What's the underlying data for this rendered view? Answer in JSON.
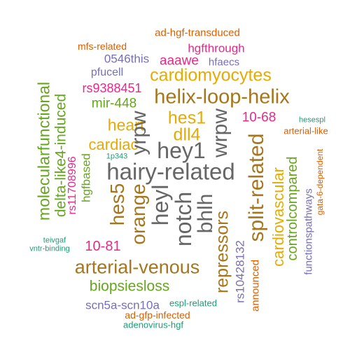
{
  "colors": {
    "green": "#1B9E77",
    "orange": "#D95F02",
    "purple": "#7570B3",
    "magenta": "#E7298A",
    "olive": "#66A61E",
    "gold": "#E6AB02",
    "brown": "#A6761D",
    "gray": "#666666"
  },
  "words": [
    {
      "text": "ad-hgf-transduced",
      "color": "orange"
    },
    {
      "text": "mfs-related",
      "color": "orange"
    },
    {
      "text": "hgfthrough",
      "color": "magenta"
    },
    {
      "text": "0546this",
      "color": "purple"
    },
    {
      "text": "aaawe",
      "color": "magenta"
    },
    {
      "text": "hfaecs",
      "color": "purple"
    },
    {
      "text": "pfucell",
      "color": "purple"
    },
    {
      "text": "cardiomyocytes",
      "color": "gold"
    },
    {
      "text": "rs9388451",
      "color": "magenta"
    },
    {
      "text": "helix-loop-helix",
      "color": "brown"
    },
    {
      "text": "mir-448",
      "color": "olive"
    },
    {
      "text": "hes1",
      "color": "gold"
    },
    {
      "text": "10-68",
      "color": "magenta"
    },
    {
      "text": "hesespl",
      "color": "green"
    },
    {
      "text": "heart",
      "color": "gold"
    },
    {
      "text": "dll4",
      "color": "gold"
    },
    {
      "text": "arterial-like",
      "color": "orange"
    },
    {
      "text": "cardiac",
      "color": "gold"
    },
    {
      "text": "hey1",
      "color": "gray"
    },
    {
      "text": "1p343",
      "color": "green"
    },
    {
      "text": "gata-6-dependent",
      "color": "orange"
    },
    {
      "text": "hairy-related",
      "color": "gray"
    },
    {
      "text": "yrpw",
      "color": "gray"
    },
    {
      "text": "wrpw",
      "color": "gray"
    },
    {
      "text": "molecularfunctional",
      "color": "olive"
    },
    {
      "text": "delta-like4-induced",
      "color": "olive"
    },
    {
      "text": "rs11708996",
      "color": "magenta"
    },
    {
      "text": "hgfbased",
      "color": "olive"
    },
    {
      "text": "hes5",
      "color": "brown"
    },
    {
      "text": "orange",
      "color": "brown"
    },
    {
      "text": "heyl",
      "color": "gray"
    },
    {
      "text": "notch",
      "color": "gray"
    },
    {
      "text": "bhlh",
      "color": "gray"
    },
    {
      "text": "split-related",
      "color": "brown"
    },
    {
      "text": "cardiovascular",
      "color": "gold"
    },
    {
      "text": "controlcompared",
      "color": "olive"
    },
    {
      "text": "functionspathways",
      "color": "purple"
    },
    {
      "text": "repressors",
      "color": "brown"
    },
    {
      "text": "rs10428132",
      "color": "purple"
    },
    {
      "text": "announced",
      "color": "orange"
    },
    {
      "text": "teivgaf",
      "color": "green"
    },
    {
      "text": "vntr-binding",
      "color": "green"
    },
    {
      "text": "10-81",
      "color": "magenta"
    },
    {
      "text": "arterial-venous",
      "color": "brown"
    },
    {
      "text": "biopsiesloss",
      "color": "olive"
    },
    {
      "text": "scn5a-scn10a",
      "color": "purple"
    },
    {
      "text": "espl-related",
      "color": "green"
    },
    {
      "text": "ad-gfp-infected",
      "color": "orange"
    },
    {
      "text": "adenovirus-hgf",
      "color": "green"
    }
  ]
}
